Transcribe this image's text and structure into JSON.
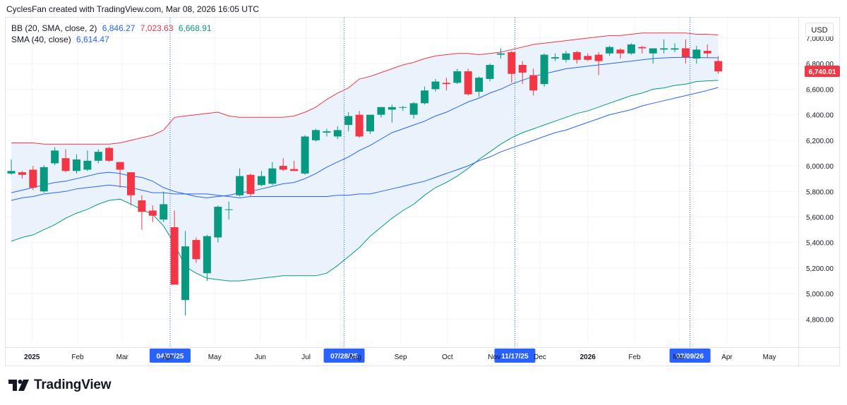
{
  "header": {
    "text": "CyclesFan created with TradingView.com, Mar 08, 2026 16:05 UTC"
  },
  "legend": {
    "bb": {
      "label": "BB (20, SMA, close, 2)",
      "basis": "6,846.27",
      "upper": "7,023.63",
      "lower": "6,668.91"
    },
    "sma": {
      "label": "SMA (40, close)",
      "value": "6,614.47"
    }
  },
  "currency_button": {
    "label": "USD"
  },
  "brand": {
    "name": "TradingView"
  },
  "colors": {
    "up": "#089981",
    "down": "#f23645",
    "bb_upper": "#f23645",
    "bb_basis": "#2962ff",
    "bb_lower": "#089981",
    "sma": "#2962ff",
    "band_fill": "#eaf3fb",
    "marker": "#2962ff"
  },
  "chart_data": {
    "type": "candlestick",
    "title": "",
    "ylim": [
      4620,
      7160
    ],
    "y_ticks": [
      4800,
      5000,
      5200,
      5400,
      5600,
      5800,
      6000,
      6200,
      6400,
      6600,
      6800,
      7000
    ],
    "y_tick_labels": [
      "4,800.00",
      "5,000.00",
      "5,200.00",
      "5,400.00",
      "5,600.00",
      "5,800.00",
      "6,000.00",
      "6,200.00",
      "6,400.00",
      "6,600.00",
      "6,800.00",
      "7,000.00"
    ],
    "x_month_labels": [
      {
        "label": "2025",
        "bar": 1.9
      },
      {
        "label": "Feb",
        "bar": 6.1
      },
      {
        "label": "Mar",
        "bar": 10.2
      },
      {
        "label": "Apr",
        "bar": 14.4
      },
      {
        "label": "May",
        "bar": 18.7
      },
      {
        "label": "Jun",
        "bar": 22.9
      },
      {
        "label": "Jul",
        "bar": 27.1
      },
      {
        "label": "Aug",
        "bar": 31.6
      },
      {
        "label": "Sep",
        "bar": 35.8
      },
      {
        "label": "Oct",
        "bar": 40.1
      },
      {
        "label": "Nov",
        "bar": 44.4
      },
      {
        "label": "Dec",
        "bar": 48.6
      },
      {
        "label": "2026",
        "bar": 53.0
      },
      {
        "label": "Feb",
        "bar": 57.3
      },
      {
        "label": "Mar",
        "bar": 61.4
      },
      {
        "label": "Apr",
        "bar": 65.8
      },
      {
        "label": "May",
        "bar": 69.7
      }
    ],
    "markers": [
      {
        "label": "04/07/25",
        "bar": 14.6
      },
      {
        "label": "07/28/25",
        "bar": 30.6
      },
      {
        "label": "11/17/25",
        "bar": 46.3
      },
      {
        "label": "03/09/26",
        "bar": 62.4
      }
    ],
    "last_price": "6,740.01",
    "last_price_value": 6740.01,
    "candles": [
      {
        "o": 5940,
        "h": 6050,
        "l": 5930,
        "c": 5960
      },
      {
        "o": 5950,
        "h": 5960,
        "l": 5900,
        "c": 5930
      },
      {
        "o": 5970,
        "h": 6000,
        "l": 5810,
        "c": 5830
      },
      {
        "o": 5800,
        "h": 6005,
        "l": 5790,
        "c": 5990
      },
      {
        "o": 6020,
        "h": 6145,
        "l": 6005,
        "c": 6120
      },
      {
        "o": 6060,
        "h": 6130,
        "l": 5950,
        "c": 5960
      },
      {
        "o": 5960,
        "h": 6090,
        "l": 5940,
        "c": 6050
      },
      {
        "o": 5970,
        "h": 6120,
        "l": 5960,
        "c": 6040
      },
      {
        "o": 6040,
        "h": 6130,
        "l": 6020,
        "c": 6110
      },
      {
        "o": 6140,
        "h": 6150,
        "l": 6030,
        "c": 6040
      },
      {
        "o": 6030,
        "h": 6030,
        "l": 5830,
        "c": 5970
      },
      {
        "o": 5950,
        "h": 5950,
        "l": 5690,
        "c": 5770
      },
      {
        "o": 5730,
        "h": 5770,
        "l": 5500,
        "c": 5640
      },
      {
        "o": 5650,
        "h": 5690,
        "l": 5560,
        "c": 5610
      },
      {
        "o": 5580,
        "h": 5800,
        "l": 5560,
        "c": 5700
      },
      {
        "o": 5520,
        "h": 5650,
        "l": 5080,
        "c": 5070
      },
      {
        "o": 4950,
        "h": 5490,
        "l": 4830,
        "c": 5370
      },
      {
        "o": 5420,
        "h": 5440,
        "l": 5240,
        "c": 5270
      },
      {
        "o": 5160,
        "h": 5460,
        "l": 5100,
        "c": 5450
      },
      {
        "o": 5440,
        "h": 5690,
        "l": 5400,
        "c": 5680
      },
      {
        "o": 5660,
        "h": 5720,
        "l": 5580,
        "c": 5660
      },
      {
        "o": 5770,
        "h": 5980,
        "l": 5760,
        "c": 5920
      },
      {
        "o": 5930,
        "h": 5940,
        "l": 5760,
        "c": 5780
      },
      {
        "o": 5850,
        "h": 5960,
        "l": 5840,
        "c": 5920
      },
      {
        "o": 5860,
        "h": 6030,
        "l": 5850,
        "c": 5980
      },
      {
        "o": 6000,
        "h": 6060,
        "l": 5960,
        "c": 5970
      },
      {
        "o": 5975,
        "h": 6040,
        "l": 5960,
        "c": 5960
      },
      {
        "o": 5940,
        "h": 6240,
        "l": 5930,
        "c": 6230
      },
      {
        "o": 6200,
        "h": 6290,
        "l": 6190,
        "c": 6280
      },
      {
        "o": 6260,
        "h": 6290,
        "l": 6230,
        "c": 6270
      },
      {
        "o": 6230,
        "h": 6310,
        "l": 6210,
        "c": 6280
      },
      {
        "o": 6320,
        "h": 6420,
        "l": 6270,
        "c": 6390
      },
      {
        "o": 6400,
        "h": 6430,
        "l": 6220,
        "c": 6230
      },
      {
        "o": 6270,
        "h": 6400,
        "l": 6250,
        "c": 6400
      },
      {
        "o": 6400,
        "h": 6460,
        "l": 6380,
        "c": 6460
      },
      {
        "o": 6440,
        "h": 6480,
        "l": 6340,
        "c": 6460
      },
      {
        "o": 6460,
        "h": 6470,
        "l": 6430,
        "c": 6460
      },
      {
        "o": 6400,
        "h": 6500,
        "l": 6370,
        "c": 6490
      },
      {
        "o": 6490,
        "h": 6620,
        "l": 6480,
        "c": 6590
      },
      {
        "o": 6600,
        "h": 6680,
        "l": 6580,
        "c": 6660
      },
      {
        "o": 6650,
        "h": 6690,
        "l": 6590,
        "c": 6640
      },
      {
        "o": 6650,
        "h": 6760,
        "l": 6640,
        "c": 6740
      },
      {
        "o": 6740,
        "h": 6760,
        "l": 6550,
        "c": 6560
      },
      {
        "o": 6580,
        "h": 6700,
        "l": 6540,
        "c": 6690
      },
      {
        "o": 6680,
        "h": 6800,
        "l": 6660,
        "c": 6790
      },
      {
        "o": 6870,
        "h": 6920,
        "l": 6840,
        "c": 6880
      },
      {
        "o": 6890,
        "h": 6900,
        "l": 6650,
        "c": 6720
      },
      {
        "o": 6790,
        "h": 6820,
        "l": 6640,
        "c": 6730
      },
      {
        "o": 6710,
        "h": 6760,
        "l": 6550,
        "c": 6590
      },
      {
        "o": 6640,
        "h": 6880,
        "l": 6620,
        "c": 6870
      },
      {
        "o": 6840,
        "h": 6880,
        "l": 6820,
        "c": 6850
      },
      {
        "o": 6830,
        "h": 6900,
        "l": 6810,
        "c": 6880
      },
      {
        "o": 6890,
        "h": 6900,
        "l": 6800,
        "c": 6830
      },
      {
        "o": 6860,
        "h": 6880,
        "l": 6820,
        "c": 6830
      },
      {
        "o": 6870,
        "h": 6890,
        "l": 6710,
        "c": 6820
      },
      {
        "o": 6880,
        "h": 6940,
        "l": 6860,
        "c": 6930
      },
      {
        "o": 6910,
        "h": 6920,
        "l": 6840,
        "c": 6880
      },
      {
        "o": 6880,
        "h": 6960,
        "l": 6870,
        "c": 6950
      },
      {
        "o": 6930,
        "h": 6940,
        "l": 6880,
        "c": 6920
      },
      {
        "o": 6880,
        "h": 6910,
        "l": 6800,
        "c": 6920
      },
      {
        "o": 6910,
        "h": 6990,
        "l": 6880,
        "c": 6920
      },
      {
        "o": 6910,
        "h": 6960,
        "l": 6890,
        "c": 6920
      },
      {
        "o": 6920,
        "h": 6990,
        "l": 6800,
        "c": 6850
      },
      {
        "o": 6840,
        "h": 6940,
        "l": 6800,
        "c": 6910
      },
      {
        "o": 6900,
        "h": 6950,
        "l": 6850,
        "c": 6880
      },
      {
        "o": 6820,
        "h": 6860,
        "l": 6720,
        "c": 6740.01
      }
    ],
    "series": [
      {
        "name": "BB upper",
        "values": [
          6180,
          6180,
          6180,
          6170,
          6170,
          6170,
          6170,
          6170,
          6170,
          6170,
          6180,
          6200,
          6220,
          6240,
          6280,
          6380,
          6390,
          6400,
          6410,
          6420,
          6390,
          6380,
          6380,
          6380,
          6380,
          6380,
          6390,
          6420,
          6460,
          6520,
          6570,
          6610,
          6680,
          6700,
          6730,
          6760,
          6790,
          6810,
          6840,
          6860,
          6870,
          6880,
          6880,
          6870,
          6880,
          6890,
          6910,
          6930,
          6950,
          6960,
          6970,
          6980,
          6990,
          7000,
          7010,
          7020,
          7020,
          7030,
          7040,
          7040,
          7040,
          7040,
          7040,
          7030,
          7030,
          7024
        ]
      },
      {
        "name": "BB basis",
        "values": [
          5790,
          5810,
          5830,
          5850,
          5870,
          5880,
          5900,
          5920,
          5940,
          5950,
          5940,
          5920,
          5910,
          5880,
          5830,
          5800,
          5780,
          5760,
          5750,
          5760,
          5770,
          5790,
          5800,
          5820,
          5840,
          5860,
          5870,
          5900,
          5940,
          5990,
          6030,
          6070,
          6120,
          6160,
          6210,
          6260,
          6290,
          6320,
          6350,
          6390,
          6420,
          6460,
          6500,
          6530,
          6570,
          6600,
          6640,
          6670,
          6700,
          6720,
          6740,
          6760,
          6770,
          6780,
          6790,
          6800,
          6810,
          6820,
          6830,
          6840,
          6845,
          6848,
          6849,
          6848,
          6847,
          6846
        ]
      },
      {
        "name": "BB lower",
        "values": [
          5410,
          5440,
          5460,
          5500,
          5540,
          5590,
          5630,
          5660,
          5700,
          5730,
          5740,
          5700,
          5660,
          5620,
          5530,
          5390,
          5210,
          5160,
          5120,
          5110,
          5100,
          5100,
          5110,
          5120,
          5130,
          5140,
          5140,
          5140,
          5140,
          5160,
          5220,
          5290,
          5360,
          5450,
          5520,
          5590,
          5650,
          5700,
          5770,
          5830,
          5870,
          5920,
          5980,
          6050,
          6110,
          6170,
          6220,
          6260,
          6290,
          6320,
          6350,
          6380,
          6410,
          6430,
          6460,
          6490,
          6520,
          6550,
          6570,
          6600,
          6610,
          6630,
          6640,
          6660,
          6665,
          6669
        ]
      },
      {
        "name": "SMA 40",
        "values": [
          5730,
          5750,
          5760,
          5780,
          5790,
          5800,
          5820,
          5830,
          5840,
          5850,
          5840,
          5830,
          5810,
          5790,
          5790,
          5780,
          5780,
          5780,
          5780,
          5770,
          5760,
          5750,
          5760,
          5760,
          5760,
          5760,
          5760,
          5760,
          5760,
          5760,
          5770,
          5770,
          5780,
          5780,
          5800,
          5820,
          5840,
          5860,
          5880,
          5910,
          5940,
          5970,
          6000,
          6040,
          6070,
          6110,
          6140,
          6170,
          6200,
          6230,
          6260,
          6280,
          6310,
          6340,
          6370,
          6400,
          6420,
          6440,
          6470,
          6490,
          6510,
          6530,
          6550,
          6570,
          6590,
          6614
        ]
      }
    ]
  }
}
